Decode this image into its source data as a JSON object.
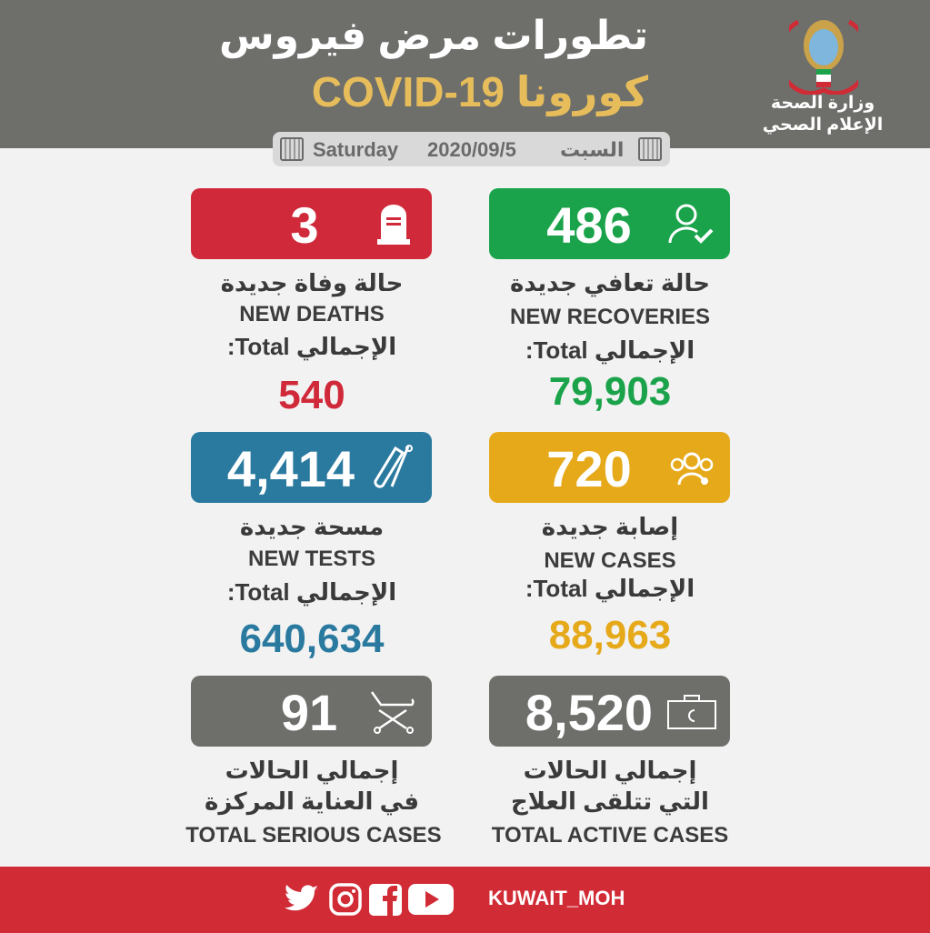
{
  "header": {
    "title_ar": "تطورات مرض فيروس",
    "title_covid": "كورونا COVID-19",
    "ministry_line1": "وزارة الصحة",
    "ministry_line2": "الإعلام الصحي"
  },
  "date": {
    "day_en": "Saturday",
    "date": "2020/09/5",
    "day_ar": "السبت"
  },
  "total_label": "الإجمالي Total:",
  "cards": {
    "deaths": {
      "value": "3",
      "label_ar": "حالة وفاة جديدة",
      "label_en": "NEW DEATHS",
      "total": "540",
      "color": "#d0293a",
      "icon": "tombstone-icon"
    },
    "recoveries": {
      "value": "486",
      "label_ar": "حالة تعافي جديدة",
      "label_en": "NEW RECOVERIES",
      "total": "79,903",
      "color": "#1aa34a",
      "icon": "person-check-icon"
    },
    "tests": {
      "value": "4,414",
      "label_ar": "مسحة جديدة",
      "label_en": "NEW TESTS",
      "total": "640,634",
      "color": "#2a7aa0",
      "icon": "test-tube-icon"
    },
    "cases": {
      "value": "720",
      "label_ar": "إصابة جديدة",
      "label_en": "NEW CASES",
      "total": "88,963",
      "color": "#e5a91a",
      "icon": "group-virus-icon"
    },
    "serious": {
      "value": "91",
      "label_ar1": "إجمالي الحالات",
      "label_ar2": "في العناية المركزة",
      "label_en": "TOTAL SERIOUS CASES",
      "color": "#6e6e6b",
      "icon": "stretcher-icon"
    },
    "active": {
      "value": "8,520",
      "label_ar1": "إجمالي الحالات",
      "label_ar2": "التي تتلقى العلاج",
      "label_en": "TOTAL ACTIVE CASES",
      "color": "#6e6e6b",
      "icon": "medical-case-icon"
    }
  },
  "footer": {
    "handle": "KUWAIT_MOH",
    "icons": [
      "twitter-icon",
      "instagram-icon",
      "facebook-icon",
      "youtube-icon"
    ],
    "color": "#d12b36"
  }
}
